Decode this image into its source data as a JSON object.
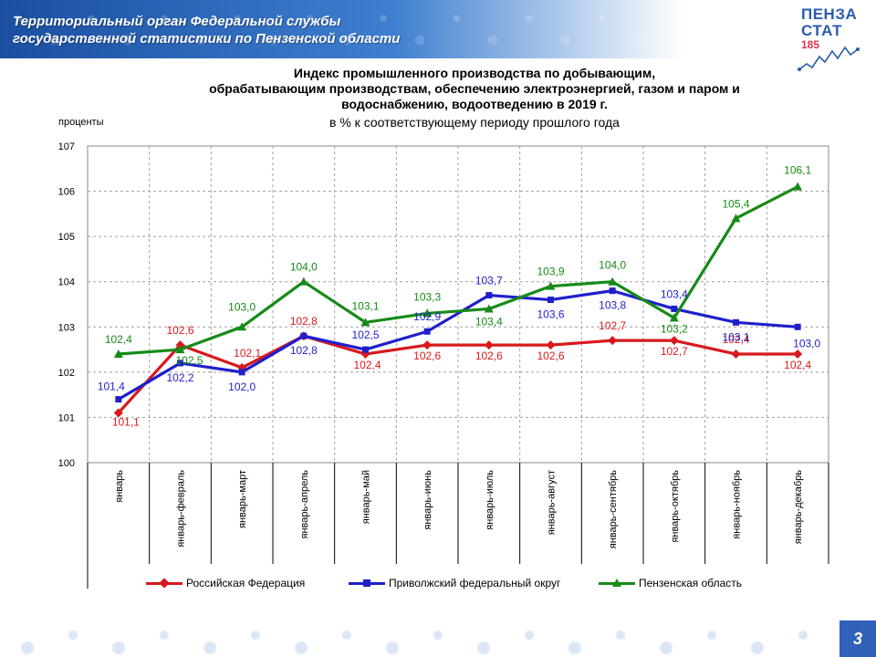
{
  "header": {
    "org_line1": "Территориальный орган Федеральной службы",
    "org_line2": "государственной  статистики по Пензенской области",
    "logo_line1": "ПЕНЗА",
    "logo_line2": "СТАТ",
    "logo_line3": "185",
    "accent_color": "#1a4fa0"
  },
  "page_number": "3",
  "chart_data": {
    "type": "line",
    "title_lines": [
      "Индекс промышленного производства по добывающим,",
      "обрабатывающим производствам, обеспечению электроэнергией, газом и паром и",
      "водоснабжению, водоотведению в  2019 г."
    ],
    "subtitle": "в % к соответствующему  периоду  прошлого  года",
    "ylabel": "проценты",
    "ylim": [
      100,
      107
    ],
    "yticks": [
      "100",
      "101",
      "102",
      "103",
      "104",
      "105",
      "106",
      "107"
    ],
    "grid": true,
    "legend_position": "bottom",
    "categories": [
      "январь",
      "январь-февраль",
      "январь-март",
      "январь-апрель",
      "январь-май",
      "январь-июнь",
      "январь-июль",
      "январь-август",
      "январь-сентябрь",
      "январь-октябрь",
      "январь-ноябрь",
      "январь-декабрь"
    ],
    "series": [
      {
        "name": "Российская Федерация",
        "color": "#d7191c",
        "marker": "diamond",
        "values": [
          101.1,
          102.6,
          102.1,
          102.8,
          102.4,
          102.6,
          102.6,
          102.6,
          102.7,
          102.7,
          102.4,
          102.4
        ],
        "labels": [
          "101,1",
          "102,6",
          "102,1",
          "102,8",
          "102,4",
          "102,6",
          "102,6",
          "102,6",
          "102,7",
          "102,7",
          "102,4",
          "102,4"
        ]
      },
      {
        "name": "Приволжский  федеральный  округ",
        "color": "#1f1fcc",
        "marker": "square",
        "values": [
          101.4,
          102.2,
          102.0,
          102.8,
          102.5,
          102.9,
          103.7,
          103.6,
          103.8,
          103.4,
          103.1,
          103.0
        ],
        "labels": [
          "101,4",
          "102,2",
          "102,0",
          "102,8",
          "102,5",
          "102,9",
          "103,7",
          "103,6",
          "103,8",
          "103,4",
          "103,1",
          "103,0"
        ]
      },
      {
        "name": "Пензенская  область",
        "color": "#178a17",
        "marker": "triangle",
        "values": [
          102.4,
          102.5,
          103.0,
          104.0,
          103.1,
          103.3,
          103.4,
          103.9,
          104.0,
          103.2,
          105.4,
          106.1
        ],
        "labels": [
          "102,4",
          "102,5",
          "103,0",
          "104,0",
          "103,1",
          "103,3",
          "103,4",
          "103,9",
          "104,0",
          "103,2",
          "105,4",
          "106,1"
        ]
      }
    ]
  }
}
